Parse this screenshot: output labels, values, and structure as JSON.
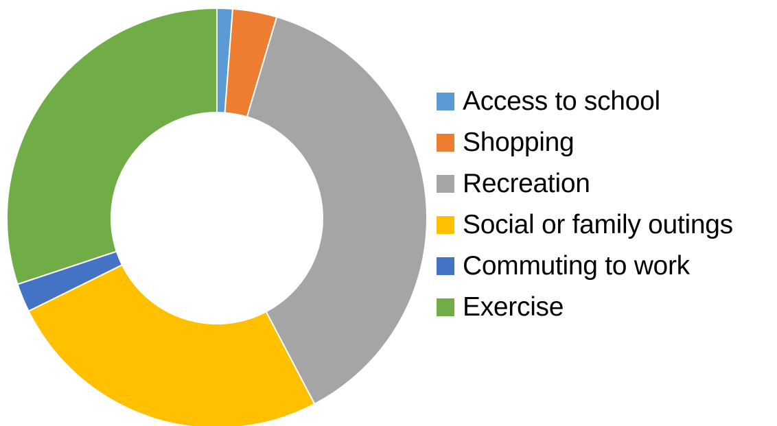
{
  "chart_data": {
    "type": "pie",
    "variant": "donut",
    "start_angle_deg": 0,
    "direction": "clockwise",
    "legend_position": "right",
    "categories": [
      "Access to school",
      "Shopping",
      "Recreation",
      "Social or family outings",
      "Commuting to work",
      "Exercise"
    ],
    "values": [
      1.2,
      3.4,
      37.7,
      25.4,
      2.2,
      30.1
    ],
    "colors": [
      "#5B9BD5",
      "#ED7D31",
      "#A5A5A5",
      "#FFC000",
      "#4472C4",
      "#70AD47"
    ]
  }
}
